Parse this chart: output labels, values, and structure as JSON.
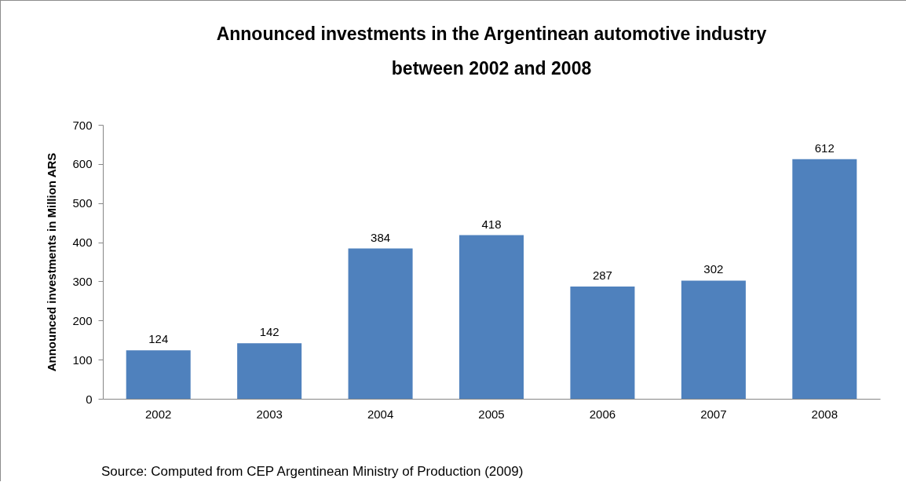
{
  "chart_data": {
    "type": "bar",
    "title": "Announced investments in the Argentinean automotive industry between 2002 and 2008",
    "ylabel": "Announced investments in Million ARS",
    "categories": [
      "2002",
      "2003",
      "2004",
      "2005",
      "2006",
      "2007",
      "2008"
    ],
    "values": [
      124,
      142,
      384,
      418,
      287,
      302,
      612
    ],
    "color": "#4f81bd",
    "ylim": [
      0,
      700
    ],
    "yticks": [
      0,
      100,
      200,
      300,
      400,
      500,
      600,
      700
    ],
    "data_labels": true,
    "annotations": [
      "Source: Computed from CEP Argentinean Ministry of Production (2009)"
    ]
  }
}
